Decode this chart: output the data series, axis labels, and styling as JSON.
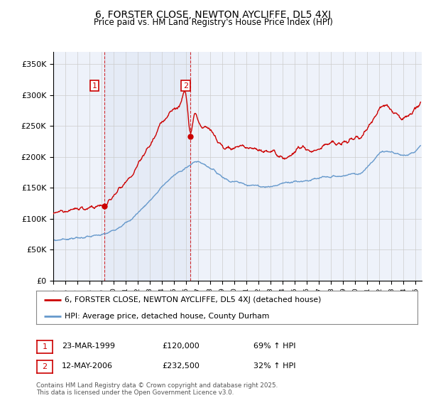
{
  "title": "6, FORSTER CLOSE, NEWTON AYCLIFFE, DL5 4XJ",
  "subtitle": "Price paid vs. HM Land Registry's House Price Index (HPI)",
  "red_label": "6, FORSTER CLOSE, NEWTON AYCLIFFE, DL5 4XJ (detached house)",
  "blue_label": "HPI: Average price, detached house, County Durham",
  "footnote": "Contains HM Land Registry data © Crown copyright and database right 2025.\nThis data is licensed under the Open Government Licence v3.0.",
  "annotation1_date": "23-MAR-1999",
  "annotation1_price": "£120,000",
  "annotation1_hpi": "69% ↑ HPI",
  "annotation2_date": "12-MAY-2006",
  "annotation2_price": "£232,500",
  "annotation2_hpi": "32% ↑ HPI",
  "sale1_year": 1999.22,
  "sale1_price": 120000,
  "sale2_year": 2006.36,
  "sale2_price": 232500,
  "ylim": [
    0,
    370000
  ],
  "xlim_start": 1995,
  "xlim_end": 2025.5,
  "red_color": "#cc0000",
  "blue_color": "#6699cc",
  "background_color": "#eef2fa",
  "plot_bg": "#ffffff",
  "grid_color": "#cccccc",
  "annotation_box_color": "#cc0000",
  "yticks": [
    0,
    50000,
    100000,
    150000,
    200000,
    250000,
    300000,
    350000
  ],
  "hpi_years": [
    1995.0,
    1995.5,
    1996.0,
    1996.5,
    1997.0,
    1997.5,
    1998.0,
    1998.5,
    1999.0,
    1999.22,
    1999.5,
    2000.0,
    2000.5,
    2001.0,
    2001.5,
    2002.0,
    2002.5,
    2003.0,
    2003.5,
    2004.0,
    2004.5,
    2005.0,
    2005.5,
    2006.0,
    2006.36,
    2006.5,
    2007.0,
    2007.5,
    2008.0,
    2008.5,
    2009.0,
    2009.5,
    2010.0,
    2010.5,
    2011.0,
    2011.5,
    2012.0,
    2012.5,
    2013.0,
    2013.5,
    2014.0,
    2014.5,
    2015.0,
    2015.5,
    2016.0,
    2016.5,
    2017.0,
    2017.5,
    2018.0,
    2018.5,
    2019.0,
    2019.5,
    2020.0,
    2020.5,
    2021.0,
    2021.5,
    2022.0,
    2022.5,
    2023.0,
    2023.5,
    2024.0,
    2024.5,
    2025.0,
    2025.4
  ],
  "hpi_vals": [
    65000,
    66000,
    67500,
    68000,
    69000,
    70000,
    71000,
    72500,
    74000,
    75000,
    77000,
    82000,
    88000,
    93000,
    100000,
    110000,
    120000,
    130000,
    140000,
    152000,
    162000,
    170000,
    177000,
    183000,
    186000,
    190000,
    192000,
    188000,
    182000,
    175000,
    168000,
    162000,
    160000,
    158000,
    156000,
    154000,
    153000,
    152000,
    152000,
    154000,
    158000,
    160000,
    160000,
    161000,
    162000,
    163000,
    165000,
    167000,
    168000,
    168000,
    169000,
    172000,
    172000,
    175000,
    185000,
    195000,
    205000,
    210000,
    208000,
    205000,
    202000,
    205000,
    210000,
    220000
  ],
  "red_years": [
    1995.0,
    1995.5,
    1996.0,
    1996.5,
    1997.0,
    1997.5,
    1998.0,
    1998.5,
    1999.0,
    1999.22,
    1999.5,
    2000.0,
    2000.5,
    2001.0,
    2001.5,
    2002.0,
    2002.5,
    2003.0,
    2003.5,
    2004.0,
    2004.5,
    2005.0,
    2005.5,
    2006.0,
    2006.36,
    2006.5,
    2007.0,
    2007.5,
    2008.0,
    2008.5,
    2009.0,
    2009.5,
    2010.0,
    2010.5,
    2011.0,
    2011.5,
    2012.0,
    2012.5,
    2013.0,
    2013.5,
    2014.0,
    2014.5,
    2015.0,
    2015.5,
    2016.0,
    2016.5,
    2017.0,
    2017.5,
    2018.0,
    2018.5,
    2019.0,
    2019.5,
    2020.0,
    2020.5,
    2021.0,
    2021.5,
    2022.0,
    2022.5,
    2023.0,
    2023.5,
    2024.0,
    2024.5,
    2025.0,
    2025.4
  ],
  "red_vals": [
    110000,
    112000,
    113000,
    114000,
    115000,
    117000,
    118000,
    120000,
    121000,
    120000,
    126000,
    137000,
    148000,
    158000,
    170000,
    186000,
    204000,
    220000,
    237000,
    256000,
    270000,
    278000,
    287000,
    297000,
    232500,
    255000,
    256000,
    248000,
    242000,
    230000,
    218000,
    213000,
    215000,
    218000,
    215000,
    212000,
    210000,
    208000,
    210000,
    205000,
    198000,
    200000,
    210000,
    215000,
    212000,
    210000,
    215000,
    220000,
    222000,
    220000,
    222000,
    228000,
    228000,
    232000,
    248000,
    260000,
    280000,
    285000,
    275000,
    268000,
    262000,
    268000,
    278000,
    290000
  ]
}
